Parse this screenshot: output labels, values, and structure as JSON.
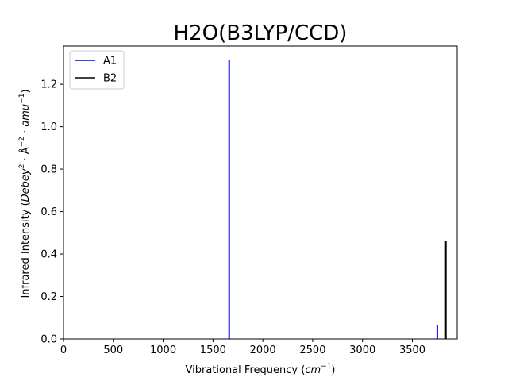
{
  "chart_data": {
    "type": "bar",
    "title": "H2O(B3LYP/CCD)",
    "xlabel_main": "Vibrational Frequency (",
    "xlabel_unit": "cm",
    "xlabel_exp": "−1",
    "xlabel_close": ")",
    "ylabel_main": "Infrared Intensity (",
    "ylabel_unit1": "Debey",
    "ylabel_exp1": "2",
    "ylabel_mid": " · Å",
    "ylabel_exp2": "−2",
    "ylabel_mid2": " · amu",
    "ylabel_exp3": "−1",
    "ylabel_close": ")",
    "xlim": [
      0,
      3950
    ],
    "ylim": [
      0,
      1.38
    ],
    "xticks": [
      0,
      500,
      1000,
      1500,
      2000,
      2500,
      3000,
      3500
    ],
    "yticks": [
      0.0,
      0.2,
      0.4,
      0.6,
      0.8,
      1.0,
      1.2
    ],
    "grid": false,
    "legend_position": "top-left",
    "series": [
      {
        "name": "A1",
        "color": "#0000ff",
        "x": [
          1662,
          3750
        ],
        "values": [
          1.315,
          0.065
        ]
      },
      {
        "name": "B2",
        "color": "#000000",
        "x": [
          3836
        ],
        "values": [
          0.46
        ]
      }
    ]
  }
}
